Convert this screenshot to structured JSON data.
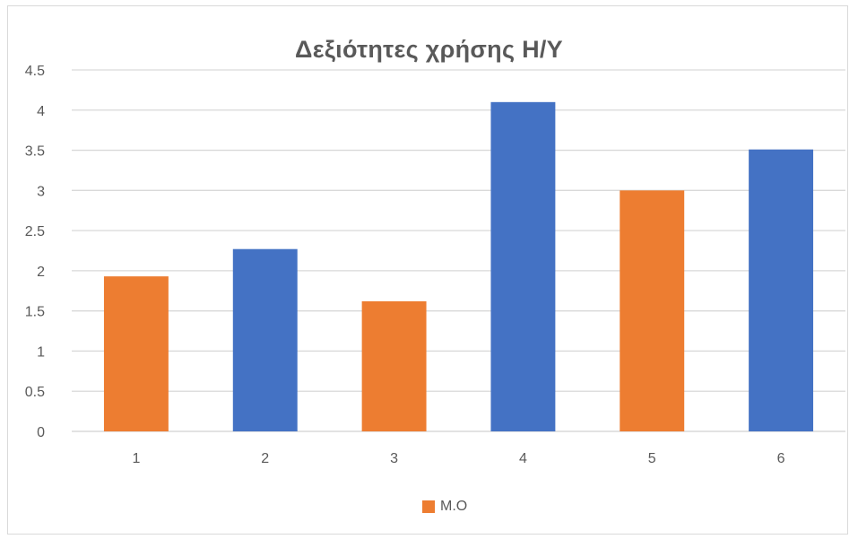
{
  "chart_data": {
    "type": "bar",
    "title": "Δεξιότητες χρήσης Η/Υ",
    "categories": [
      "1",
      "2",
      "3",
      "4",
      "5",
      "6"
    ],
    "values": [
      1.93,
      2.27,
      1.62,
      4.1,
      3.0,
      3.51
    ],
    "bar_colors": [
      "#ED7D31",
      "#4472C4",
      "#ED7D31",
      "#4472C4",
      "#ED7D31",
      "#4472C4"
    ],
    "ylim": [
      0,
      4.5
    ],
    "yticks": [
      "0",
      "0.5",
      "1",
      "1.5",
      "2",
      "2.5",
      "3",
      "3.5",
      "4",
      "4.5"
    ],
    "grid": true,
    "legend": {
      "position": "bottom",
      "entries": [
        {
          "label": "Μ.Ο",
          "color": "#ED7D31"
        }
      ]
    }
  }
}
